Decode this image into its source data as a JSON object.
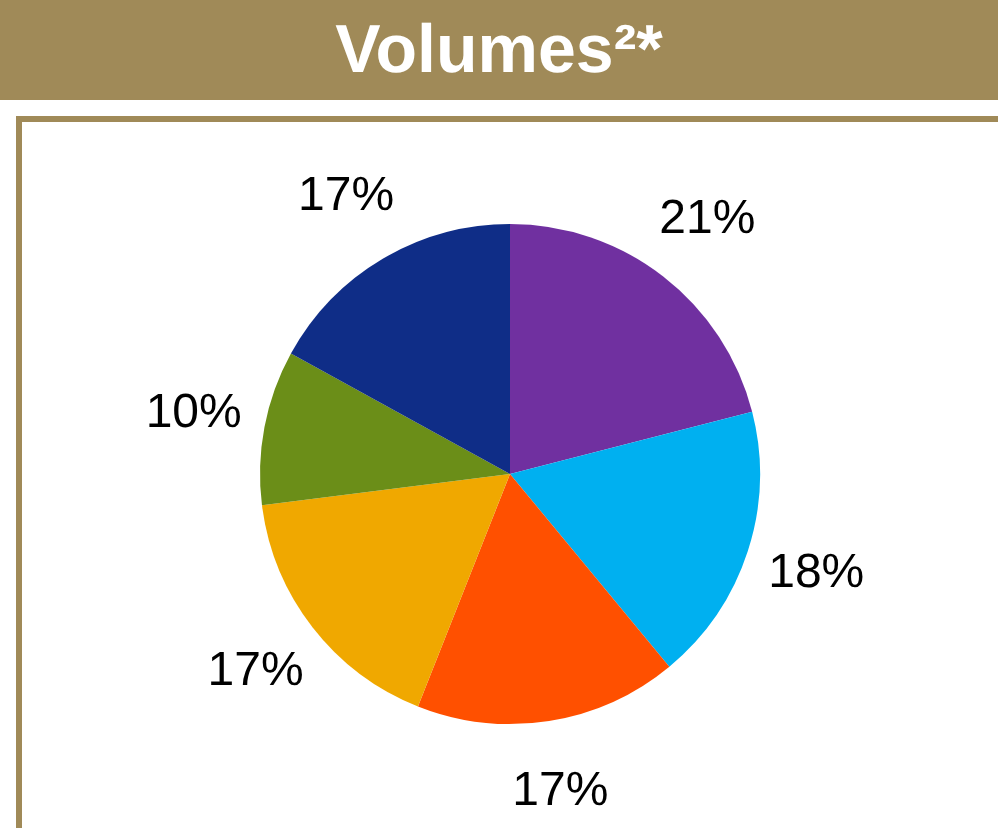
{
  "chart_data": {
    "type": "pie",
    "title": "Volumes²*",
    "categories": [
      null,
      null,
      null,
      null,
      null,
      null
    ],
    "values": [
      21,
      18,
      17,
      17,
      10,
      17
    ],
    "colors": [
      "#7030a0",
      "#00b0f0",
      "#ff5000",
      "#f0a800",
      "#6b8e18",
      "#0f2d87"
    ],
    "value_labels": [
      "21%",
      "18%",
      "17%",
      "17%",
      "10%",
      "17%"
    ],
    "legend": false
  }
}
